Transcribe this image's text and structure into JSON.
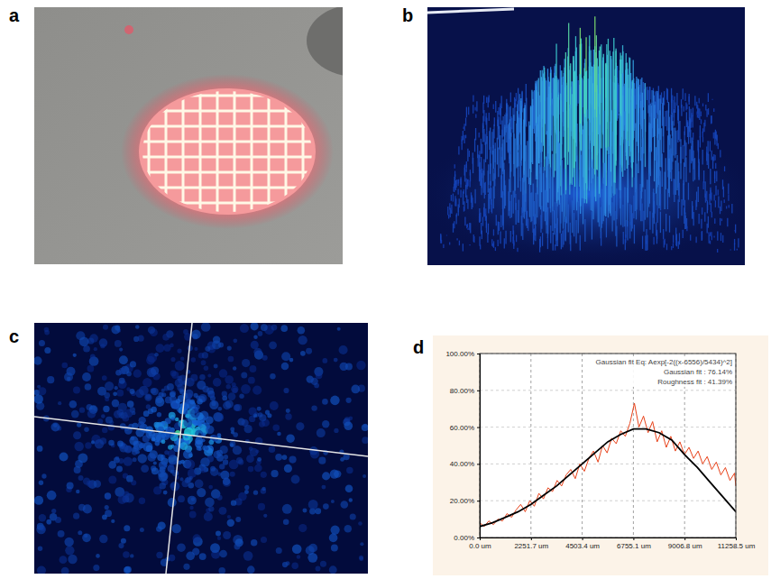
{
  "panel_letters": [
    "a",
    "b",
    "c",
    "d"
  ],
  "chart_data": {
    "type": "line",
    "annotations": [
      "Gaussian fit Eq: Aexp[-2((x-6556)/5434)^2]",
      "Gaussian fit : 76.14%",
      "Roughness fit : 41.39%"
    ],
    "xlim": [
      0,
      11258.5
    ],
    "ylim": [
      0,
      100
    ],
    "xticks": [
      {
        "value": 0,
        "label": "0.0 um"
      },
      {
        "value": 2251.7,
        "label": "2251.7 um"
      },
      {
        "value": 4503.4,
        "label": "4503.4 um"
      },
      {
        "value": 6755.1,
        "label": "6755.1 um"
      },
      {
        "value": 9006.8,
        "label": "9006.8 um"
      },
      {
        "value": 11258.5,
        "label": "11258.5 um"
      }
    ],
    "yticks": [
      {
        "value": 0,
        "label": "0.00%"
      },
      {
        "value": 20,
        "label": "20.00%"
      },
      {
        "value": 40,
        "label": "40.00%"
      },
      {
        "value": 60,
        "label": "60.00%"
      },
      {
        "value": 80,
        "label": "80.00%"
      },
      {
        "value": 100,
        "label": "100.00%"
      }
    ],
    "grid": true,
    "series": [
      {
        "type": "line",
        "color": "#e8421a",
        "x": [
          0,
          200,
          400,
          600,
          800,
          1000,
          1200,
          1400,
          1600,
          1800,
          2000,
          2200,
          2400,
          2600,
          2800,
          3000,
          3200,
          3400,
          3600,
          3800,
          4000,
          4200,
          4400,
          4600,
          4800,
          5000,
          5200,
          5400,
          5600,
          5800,
          6000,
          6200,
          6400,
          6600,
          6800,
          7000,
          7200,
          7400,
          7600,
          7800,
          8000,
          8200,
          8400,
          8600,
          8800,
          9000,
          9200,
          9400,
          9600,
          9800,
          10000,
          10200,
          10400,
          10600,
          10800,
          11000,
          11200,
          11258.5
        ],
        "values": [
          8,
          6,
          9,
          7,
          10,
          9,
          13,
          11,
          15,
          18,
          14,
          20,
          17,
          24,
          21,
          27,
          25,
          31,
          28,
          34,
          37,
          32,
          40,
          36,
          43,
          47,
          41,
          50,
          46,
          54,
          51,
          58,
          55,
          62,
          73,
          60,
          66,
          57,
          63,
          52,
          58,
          49,
          55,
          47,
          52,
          45,
          49,
          43,
          47,
          40,
          44,
          37,
          41,
          34,
          38,
          31,
          35,
          28
        ]
      },
      {
        "type": "line",
        "color": "#000000",
        "x": [
          0,
          563,
          1126,
          1689,
          2252,
          2815,
          3377,
          3940,
          4503,
          5066,
          5629,
          6192,
          6755,
          7318,
          7881,
          8444,
          9007,
          9570,
          10133,
          10696,
          11258.5
        ],
        "values": [
          6,
          8,
          11,
          14,
          18,
          23,
          28,
          34,
          40,
          46,
          52,
          56,
          59,
          59,
          57,
          53,
          45,
          38,
          30,
          22,
          14
        ]
      }
    ]
  }
}
